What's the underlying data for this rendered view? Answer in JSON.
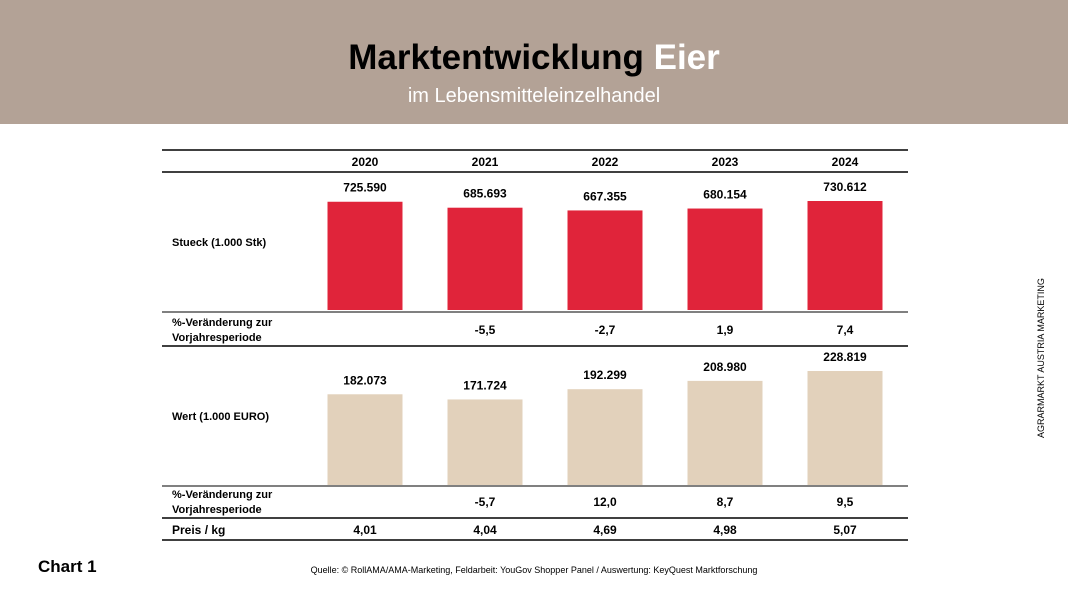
{
  "header": {
    "title_main": "Marktentwicklung",
    "title_accent": "Eier",
    "subtitle": "im Lebensmitteleinzelhandel"
  },
  "colors": {
    "header_bg": "#b3a296",
    "stueck_bar": "#e0243a",
    "wert_bar": "#e2d1bb"
  },
  "chart_data": {
    "type": "bar",
    "categories": [
      "2020",
      "2021",
      "2022",
      "2023",
      "2024"
    ],
    "series": [
      {
        "name": "Stueck (1.000 Stk)",
        "values": [
          725590,
          685693,
          667355,
          680154,
          730612
        ],
        "labels": [
          "725.590",
          "685.693",
          "667.355",
          "680.154",
          "730.612"
        ],
        "change_label": "%-Veränderung zur Vorjahresperiode",
        "change": [
          "",
          "-5,5",
          "-2,7",
          "1,9",
          "7,4"
        ]
      },
      {
        "name": "Wert (1.000 EURO)",
        "values": [
          182073,
          171724,
          192299,
          208980,
          228819
        ],
        "labels": [
          "182.073",
          "171.724",
          "192.299",
          "208.980",
          "228.819"
        ],
        "change_label": "%-Veränderung zur Vorjahresperiode",
        "change": [
          "",
          "-5,7",
          "12,0",
          "8,7",
          "9,5"
        ]
      }
    ],
    "price_row": {
      "label": "Preis / kg",
      "values": [
        "4,01",
        "4,04",
        "4,69",
        "4,98",
        "5,07"
      ]
    }
  },
  "footer": {
    "chart_label": "Chart 1",
    "source": "Quelle: © RollAMA/AMA-Marketing, Feldarbeit: YouGov Shopper Panel / Auswertung: KeyQuest Marktforschung",
    "vertical_text": "AGRARMARKT AUSTRIA MARKETING"
  }
}
